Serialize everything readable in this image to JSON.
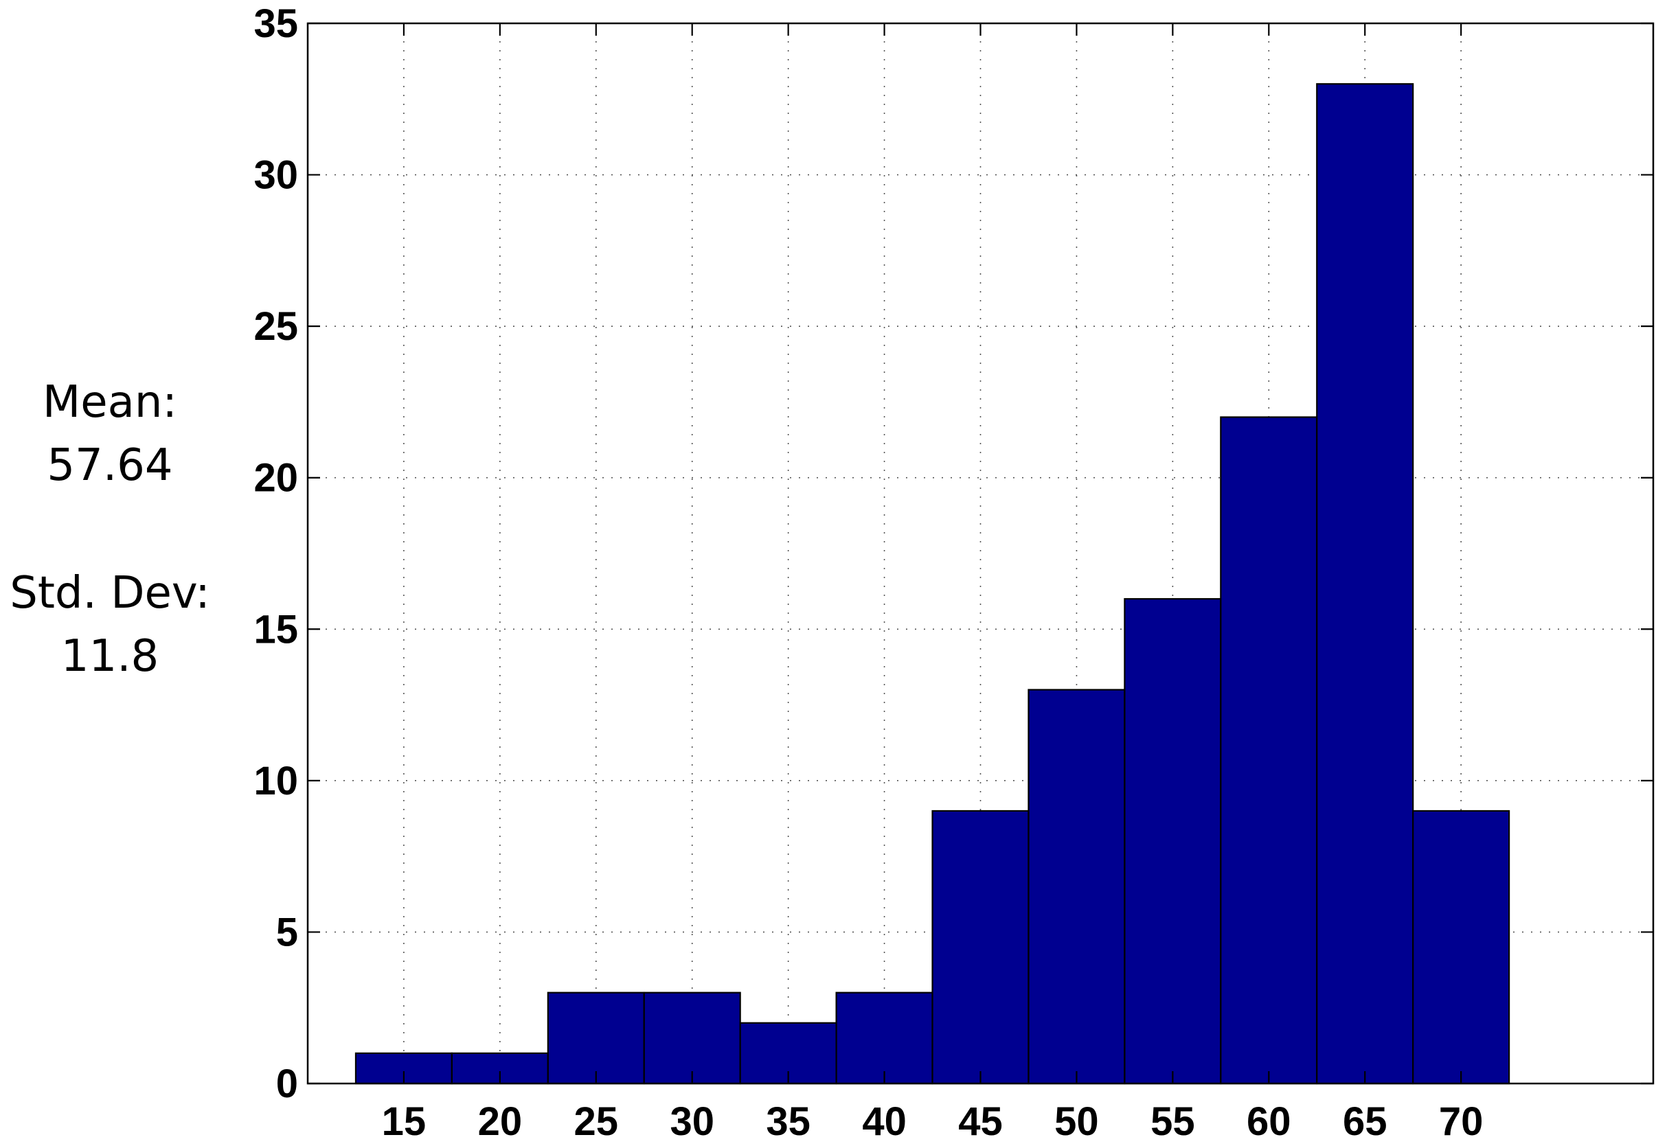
{
  "stats": {
    "mean_label": "Mean:",
    "mean_value": "57.64",
    "std_label": "Std. Dev:",
    "std_value": "11.8"
  },
  "chart_data": {
    "type": "bar",
    "title": "",
    "xlabel": "",
    "ylabel": "",
    "bin_centers": [
      15,
      20,
      25,
      30,
      35,
      40,
      45,
      50,
      55,
      60,
      65,
      70
    ],
    "values": [
      1,
      1,
      3,
      3,
      2,
      3,
      9,
      13,
      16,
      22,
      33,
      9
    ],
    "bin_width": 5,
    "xlim": [
      10,
      80
    ],
    "ylim": [
      0,
      35
    ],
    "xticks": [
      15,
      20,
      25,
      30,
      35,
      40,
      45,
      50,
      55,
      60,
      65,
      70
    ],
    "yticks": [
      0,
      5,
      10,
      15,
      20,
      25,
      30,
      35
    ],
    "grid": true,
    "bar_color": "#000090",
    "edge_color": "#000000"
  }
}
